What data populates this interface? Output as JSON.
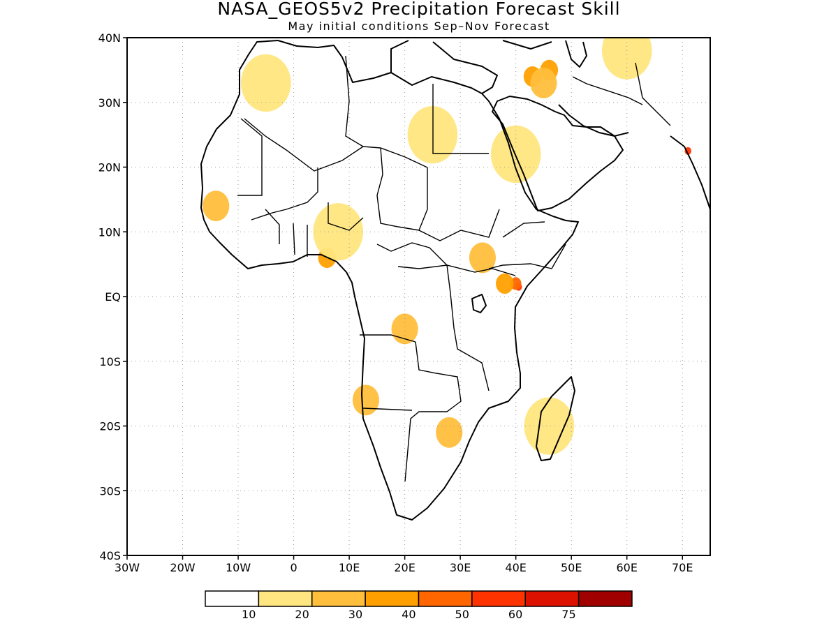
{
  "title": "NASA_GEOS5v2 Precipitation Forecast Skill",
  "subtitle": "May initial conditions  Sep–Nov Forecast",
  "lat_labels": [
    "40N",
    "30N",
    "20N",
    "10N",
    "EQ",
    "10S",
    "20S",
    "30S",
    "40S"
  ],
  "lon_labels": [
    "30W",
    "20W",
    "10W",
    "0",
    "10E",
    "20E",
    "30E",
    "40E",
    "50E",
    "60E",
    "70E"
  ],
  "colorbar": {
    "colors": [
      "#ffffff",
      "#ffe680",
      "#ffbe3c",
      "#ffa000",
      "#ff6600",
      "#ff3300",
      "#dd1100",
      "#a00000"
    ],
    "labels": [
      "10",
      "20",
      "30",
      "40",
      "50",
      "60",
      "75"
    ]
  },
  "chart_data": {
    "type": "heatmap",
    "title": "NASA_GEOS5v2 Precipitation Forecast Skill",
    "subtitle": "May initial conditions  Sep–Nov Forecast",
    "xlim": [
      -30,
      75
    ],
    "ylim": [
      -40,
      40
    ],
    "x_ticks": [
      -30,
      -20,
      -10,
      0,
      10,
      20,
      30,
      40,
      50,
      60,
      70
    ],
    "y_ticks": [
      40,
      30,
      20,
      10,
      0,
      -10,
      -20,
      -30,
      -40
    ],
    "grid": true,
    "levels": [
      10,
      20,
      30,
      40,
      50,
      60,
      75
    ],
    "regions": [
      {
        "lon": 40.5,
        "lat": 1.5,
        "level": 50
      },
      {
        "lon": 71,
        "lat": 22.5,
        "level": 50
      },
      {
        "lon": 40,
        "lat": 2,
        "level": 40
      },
      {
        "lon": 46,
        "lat": 35,
        "level": 30
      },
      {
        "lon": 43,
        "lat": 34,
        "level": 30
      },
      {
        "lon": 6,
        "lat": 6,
        "level": 30
      },
      {
        "lon": 38,
        "lat": 2,
        "level": 30
      },
      {
        "lon": 34,
        "lat": 6,
        "level": 20
      },
      {
        "lon": 20,
        "lat": -5,
        "level": 20
      },
      {
        "lon": 45,
        "lat": 33,
        "level": 20
      },
      {
        "lon": -14,
        "lat": 14,
        "level": 20
      },
      {
        "lon": 13,
        "lat": -16,
        "level": 20
      },
      {
        "lon": 28,
        "lat": -21,
        "level": 20
      },
      {
        "lon": 8,
        "lat": 10,
        "level": 10
      },
      {
        "lon": -5,
        "lat": 33,
        "level": 10
      },
      {
        "lon": 25,
        "lat": 25,
        "level": 10
      },
      {
        "lon": 40,
        "lat": 22,
        "level": 10
      },
      {
        "lon": 60,
        "lat": 38,
        "level": 10
      },
      {
        "lon": 46,
        "lat": -20,
        "level": 10
      }
    ]
  }
}
